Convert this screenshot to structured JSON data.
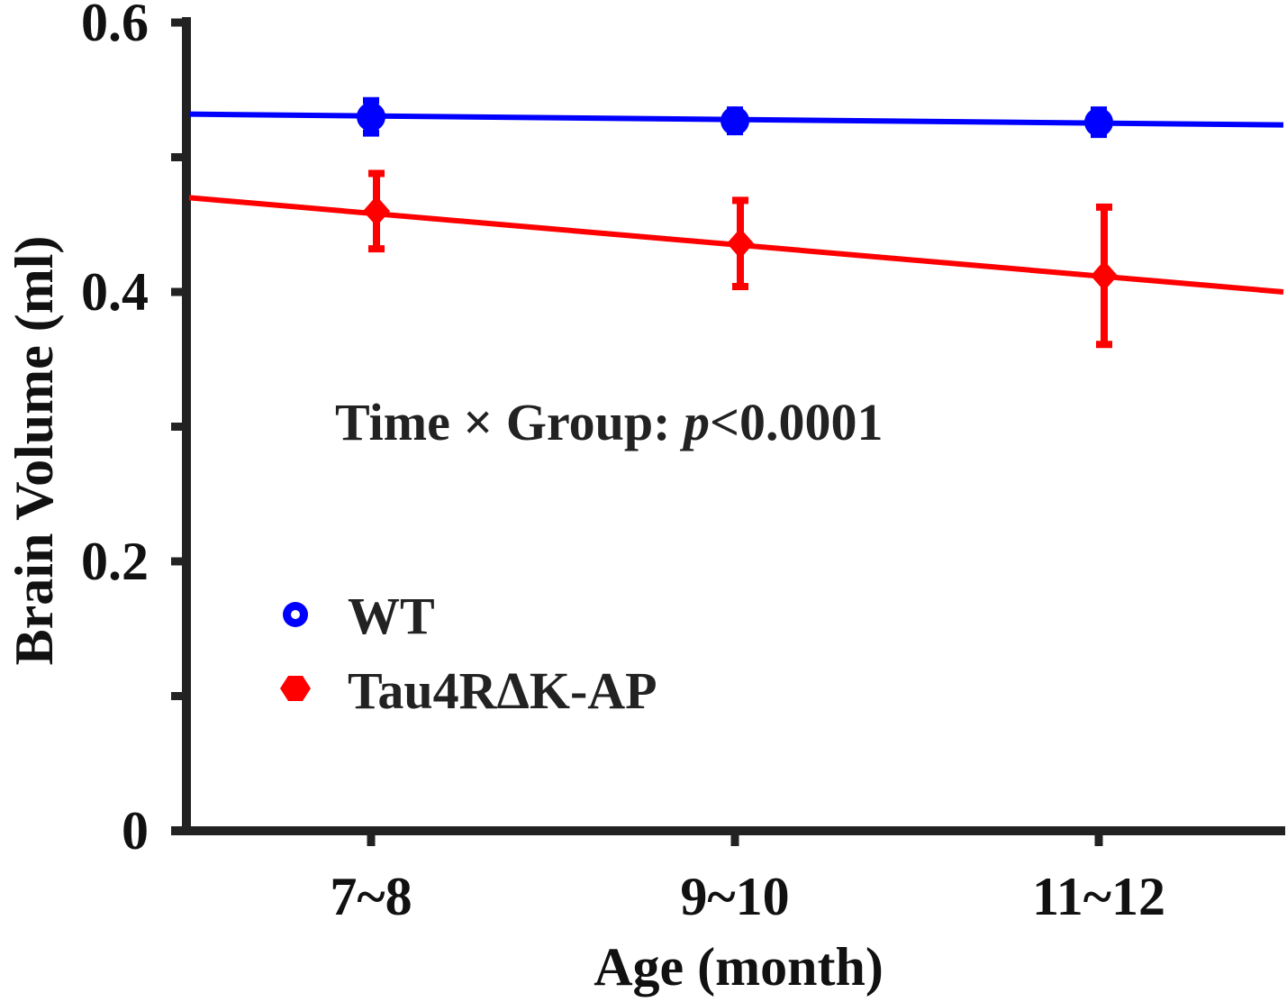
{
  "chart_data": {
    "type": "line",
    "title": "",
    "xlabel": "Age (month)",
    "ylabel": "Brain Volume (ml)",
    "categories": [
      "7~8",
      "9~10",
      "11~12"
    ],
    "ylim": [
      0,
      0.6
    ],
    "yticks": [
      0,
      0.1,
      0.2,
      0.3,
      0.4,
      0.5,
      0.6
    ],
    "ytick_labels": [
      "0",
      "",
      "0.2",
      "",
      "0.4",
      "",
      "0.6"
    ],
    "grid": false,
    "legend_position": "lower-left",
    "series": [
      {
        "name": "WT",
        "color": "#0000ff",
        "marker": "circle",
        "values": [
          0.53,
          0.527,
          0.526
        ],
        "errors": [
          0.012,
          0.008,
          0.009
        ],
        "fit_line": {
          "start": 0.532,
          "end": 0.524
        }
      },
      {
        "name": "Tau4RΔK-AP",
        "color": "#ff0000",
        "marker": "diamond",
        "values": [
          0.46,
          0.436,
          0.412
        ],
        "errors": [
          0.028,
          0.032,
          0.051
        ],
        "fit_line": {
          "start": 0.47,
          "end": 0.4
        }
      }
    ],
    "annotation": {
      "prefix": "Time × Group: ",
      "italic": "p",
      "suffix": "<0.0001"
    }
  }
}
